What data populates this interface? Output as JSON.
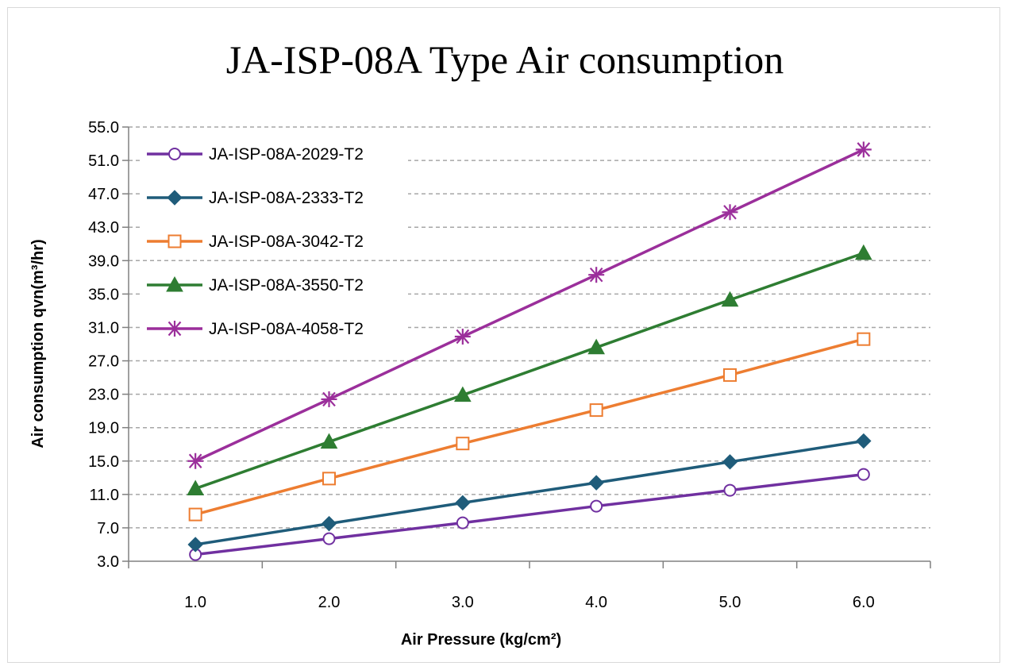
{
  "chart_data": {
    "type": "line",
    "title": "JA-ISP-08A Type Air consumption",
    "xlabel": "Air Pressure (kg/cm²)",
    "ylabel": "Air consumption qvn(m³/hr)",
    "x": [
      1.0,
      2.0,
      3.0,
      4.0,
      5.0,
      6.0
    ],
    "x_tick_labels": [
      "1.0",
      "2.0",
      "3.0",
      "4.0",
      "5.0",
      "6.0"
    ],
    "xlim": [
      0.5,
      6.5
    ],
    "ylim": [
      3.0,
      55.0
    ],
    "y_ticks": [
      "3.0",
      "7.0",
      "11.0",
      "15.0",
      "19.0",
      "23.0",
      "27.0",
      "31.0",
      "35.0",
      "39.0",
      "43.0",
      "47.0",
      "51.0",
      "55.0"
    ],
    "grid": "horizontal dashed",
    "legend_position": "top-left",
    "series": [
      {
        "name": "JA-ISP-08A-2029-T2",
        "color": "#7030a0",
        "marker": "circle-open",
        "values": [
          3.8,
          5.7,
          7.6,
          9.6,
          11.5,
          13.4
        ]
      },
      {
        "name": "JA-ISP-08A-2333-T2",
        "color": "#1f5c7a",
        "marker": "diamond",
        "values": [
          5.0,
          7.5,
          10.0,
          12.4,
          14.9,
          17.4
        ]
      },
      {
        "name": "JA-ISP-08A-3042-T2",
        "color": "#ed7d31",
        "marker": "square-open",
        "values": [
          8.6,
          12.9,
          17.1,
          21.1,
          25.3,
          29.6
        ]
      },
      {
        "name": "JA-ISP-08A-3550-T2",
        "color": "#2e7d32",
        "marker": "triangle",
        "values": [
          11.7,
          17.3,
          22.9,
          28.6,
          34.3,
          39.9
        ]
      },
      {
        "name": "JA-ISP-08A-4058-T2",
        "color": "#9b2f9b",
        "marker": "asterisk",
        "values": [
          15.0,
          22.4,
          29.9,
          37.3,
          44.8,
          52.3
        ]
      }
    ]
  }
}
